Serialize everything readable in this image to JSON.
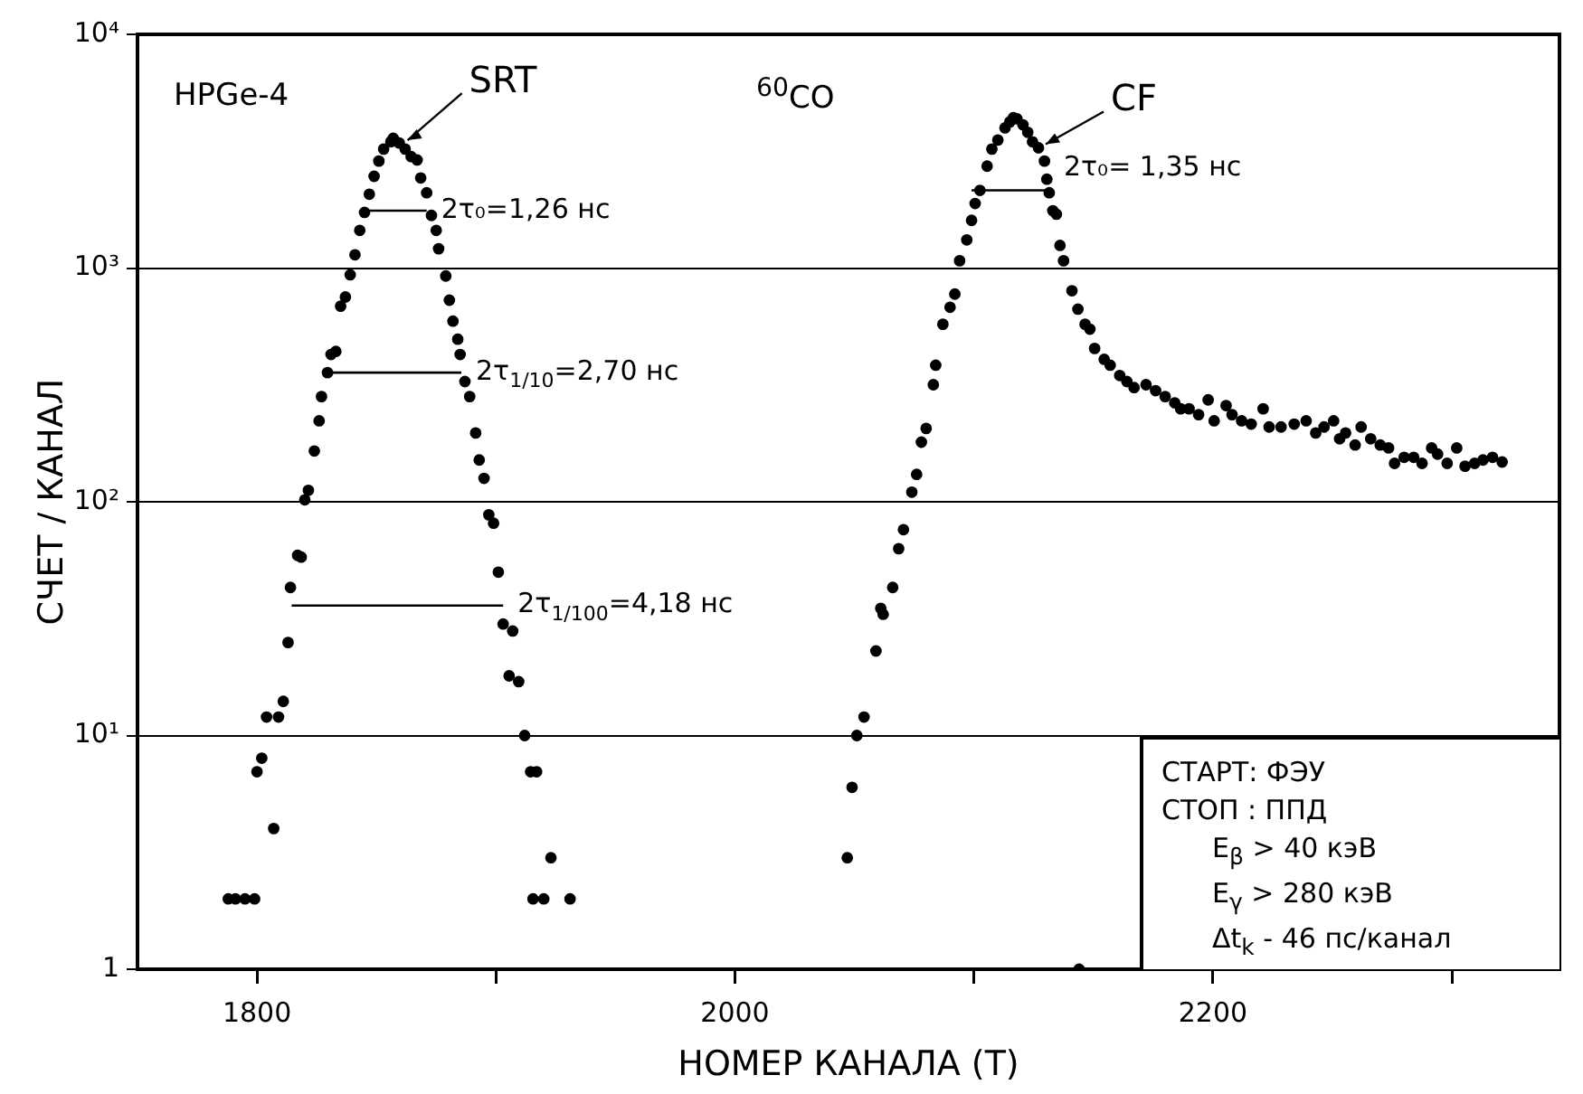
{
  "chart_data": {
    "type": "scatter",
    "xlabel": "НОМЕР КАНАЛА (T)",
    "ylabel": "СЧЕТ / КАНАЛ",
    "xlim": [
      1750,
      2345
    ],
    "xticks": [
      1800,
      {
        "value": 1900,
        "label": null
      },
      2000,
      {
        "value": 2100,
        "label": null
      },
      2200,
      {
        "value": 2300,
        "label": null
      }
    ],
    "ylim": [
      1,
      10000
    ],
    "yticks": [
      1,
      {
        "value": 10,
        "label": "10¹"
      },
      {
        "value": 100,
        "label": "10²"
      },
      {
        "value": 1000,
        "label": "10³"
      },
      {
        "value": 10000,
        "label": "10⁴"
      }
    ],
    "log": "y",
    "grid": "y",
    "legend": false,
    "marker": "circle",
    "series": [
      {
        "color": "#000000",
        "x": [
          1788,
          1791,
          1795,
          1799,
          1800,
          1802,
          1804,
          1807,
          1809,
          1811,
          1813,
          1814,
          1817,
          1818.5,
          1820,
          1821.5,
          1824,
          1826,
          1827,
          1829.5,
          1831,
          1833,
          1835,
          1837,
          1839,
          1841,
          1843,
          1845,
          1847,
          1849,
          1851,
          1853,
          1856,
          1857,
          1859.5,
          1862,
          1864.5,
          1867,
          1868.5,
          1871,
          1873,
          1875,
          1876,
          1879,
          1880.5,
          1882,
          1884,
          1885,
          1887,
          1889,
          1891.5,
          1893,
          1895,
          1897,
          1899,
          1901,
          1903,
          1905.5,
          1907,
          1909.5,
          1912,
          1914.5,
          1915.5,
          1917,
          1920,
          1923,
          1931
        ],
        "values": [
          2,
          2,
          2,
          2,
          7,
          8,
          12,
          4,
          12,
          14,
          25,
          43,
          59,
          58,
          102,
          112,
          165,
          222,
          282,
          357,
          427,
          440,
          687,
          752,
          936,
          1140,
          1450,
          1730,
          2070,
          2470,
          2870,
          3230,
          3470,
          3590,
          3430,
          3230,
          3000,
          2900,
          2430,
          2100,
          1680,
          1450,
          1210,
          925,
          729,
          593,
          496,
          427,
          327,
          282,
          197,
          151,
          126,
          88,
          81,
          50,
          30,
          18,
          28,
          17,
          10,
          7,
          2,
          7,
          2,
          3,
          2
        ]
      },
      {
        "color": "#000000",
        "x": [
          2047,
          2049,
          2051,
          2054,
          2059,
          2061,
          2062,
          2066,
          2068.5,
          2070.5,
          2074,
          2076,
          2078,
          2080,
          2083,
          2084,
          2087,
          2090,
          2092,
          2094,
          2097,
          2099,
          2100.5,
          2102.5,
          2105.5,
          2107.5,
          2110,
          2113,
          2115,
          2116.5,
          2118,
          2120.5,
          2122.5,
          2124.5,
          2127,
          2129.5,
          2130.5,
          2131.5,
          2133,
          2134.5,
          2136,
          2137.5,
          2141,
          2143.5,
          2146.5,
          2148.5,
          2150.5,
          2154.5,
          2157,
          2161,
          2164,
          2167,
          2172,
          2176,
          2180,
          2184,
          2186.5,
          2190,
          2194,
          2198,
          2200.5,
          2205.5,
          2208,
          2212,
          2216,
          2221,
          2223.5,
          2228.5,
          2234,
          2239,
          2243,
          2246.5,
          2250.5,
          2253,
          2255.5,
          2259.5,
          2262,
          2266,
          2270,
          2273.5,
          2276,
          2280,
          2284,
          2287.5,
          2291.5,
          2294,
          2298,
          2302,
          2305.5,
          2309.5,
          2313,
          2317,
          2321,
          2144
        ],
        "values": [
          3,
          6,
          10,
          12,
          23,
          35,
          33,
          43,
          63,
          76,
          110,
          131,
          180,
          206,
          317,
          384,
          575,
          680,
          774,
          1075,
          1320,
          1600,
          1890,
          2150,
          2730,
          3230,
          3530,
          3980,
          4220,
          4400,
          4350,
          4100,
          3810,
          3470,
          3270,
          2870,
          2400,
          2100,
          1760,
          1700,
          1250,
          1075,
          800,
          667,
          575,
          548,
          453,
          407,
          384,
          347,
          327,
          308,
          317,
          299,
          282,
          265,
          250,
          250,
          236,
          273,
          222,
          258,
          236,
          222,
          215,
          250,
          209,
          209,
          215,
          222,
          197,
          209,
          222,
          186,
          197,
          175,
          209,
          186,
          175,
          170,
          146,
          155,
          155,
          146,
          170,
          160,
          146,
          170,
          142,
          146,
          151,
          155,
          148,
          1
        ]
      },
      {
        "type": "line",
        "marker": "none",
        "color": "#000000",
        "x": [
          1845.5,
          1871
        ],
        "values": [
          1760,
          1760
        ]
      },
      {
        "type": "line",
        "marker": "none",
        "color": "#000000",
        "x": [
          1830,
          1885.5
        ],
        "values": [
          357,
          357
        ]
      },
      {
        "type": "line",
        "marker": "none",
        "color": "#000000",
        "x": [
          1814.5,
          1903
        ],
        "values": [
          36,
          36
        ]
      },
      {
        "type": "line",
        "marker": "none",
        "color": "#000000",
        "x": [
          2099,
          2130
        ],
        "values": [
          2150,
          2150
        ]
      }
    ],
    "annotations": [
      "HPGe-4",
      "$^{60}$CO",
      {
        "text": "SRT",
        "x": 1860,
        "y": 3400
      },
      {
        "text": "2τ₀=1,26 нс",
        "x": 1871,
        "y": 1760
      },
      {
        "text": "2τ$_{1/10}$=2,70 нс",
        "x": 1885.5,
        "y": 357
      },
      {
        "text": "2τ$_{1/100}$=4,18 нс",
        "x": 1903,
        "y": 36
      },
      {
        "text": "CF",
        "x": 2127,
        "y": 3270
      },
      {
        "text": "2τ₀= 1,35 нс",
        "x": 2130,
        "y": 2150
      },
      "СТАРТ: ФЭУ",
      "СТОП : ППД",
      "E$_{β}$ > 40 кэВ",
      "E$_{γ}$ > 280 кэВ",
      "Δt$_{k}$ - 46 пс/канал"
    ]
  }
}
